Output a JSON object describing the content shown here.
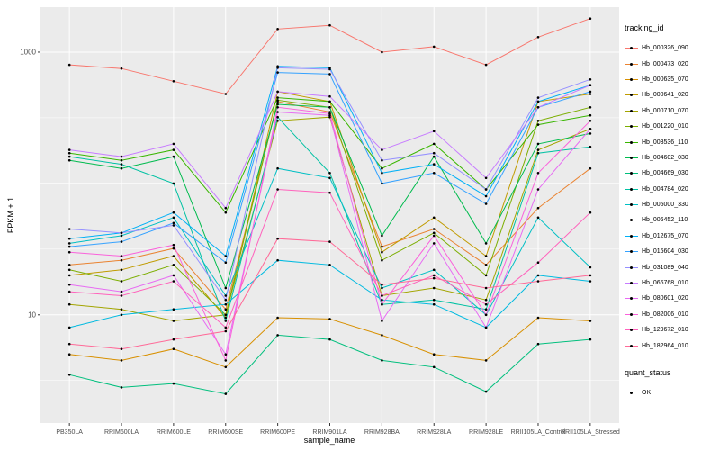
{
  "figure": {
    "panel_bg": "#EBEBEB",
    "grid_color": "#FFFFFF",
    "tick_label_color": "#4D4D4D",
    "tick_mark_color": "#333333",
    "point_color": "#000000"
  },
  "axes": {
    "x_title": "sample_name",
    "y_title": "FPKM + 1",
    "y_tick_labels": [
      {
        "label": "1000",
        "value": 1000
      },
      {
        "label": "10",
        "value": 10
      }
    ],
    "y_major_gridlines": [
      10,
      100,
      1000
    ],
    "y_minor_gridlines": [
      3.162,
      31.62,
      316.2
    ]
  },
  "legend": {
    "tracking_title": "tracking_id",
    "quant_title": "quant_status",
    "quant_items": [
      {
        "label": "OK"
      }
    ]
  },
  "chart_data": {
    "type": "line",
    "title": "",
    "xlabel": "sample_name",
    "ylabel": "FPKM + 1",
    "y_scale": "log10",
    "ylim": [
      1.5,
      2200
    ],
    "grid": true,
    "legend_position": "right",
    "x_categories": [
      "PB350LA",
      "RRIM600LA",
      "RRIM600LE",
      "RRIM600SE",
      "RRIM600PE",
      "RRIM901LA",
      "RRIM928BA",
      "RRIM928LA",
      "RRIM928LE",
      "RRII105LA_Control",
      "RRII105LA_Stressed"
    ],
    "series": [
      {
        "name": "Hb_000326_090",
        "color": "#F8766D",
        "values": [
          800,
          750,
          600,
          480,
          1500,
          1600,
          1000,
          1100,
          800,
          1300,
          1800
        ]
      },
      {
        "name": "Hb_000473_020",
        "color": "#EA8331",
        "values": [
          24,
          26,
          32,
          11,
          420,
          350,
          33,
          45,
          24,
          65,
          130
        ]
      },
      {
        "name": "Hb_000635_070",
        "color": "#D89000",
        "values": [
          5,
          4.5,
          5.5,
          4,
          9.5,
          9.3,
          7,
          5,
          4.5,
          9.5,
          9
        ]
      },
      {
        "name": "Hb_000641_020",
        "color": "#C09B00",
        "values": [
          20,
          22,
          28,
          9.5,
          500,
          420,
          30,
          55,
          28,
          420,
          480
        ]
      },
      {
        "name": "Hb_000710_070",
        "color": "#A3A500",
        "values": [
          12,
          11,
          9,
          10,
          300,
          320,
          14,
          16,
          13,
          180,
          260
        ]
      },
      {
        "name": "Hb_001220_010",
        "color": "#7CAE00",
        "values": [
          22,
          18,
          24,
          10,
          430,
          380,
          26,
          42,
          20,
          300,
          380
        ]
      },
      {
        "name": "Hb_003536_110",
        "color": "#39B600",
        "values": [
          170,
          150,
          180,
          60,
          450,
          420,
          130,
          200,
          90,
          280,
          330
        ]
      },
      {
        "name": "Hb_004602_030",
        "color": "#00BB4E",
        "values": [
          150,
          130,
          160,
          16,
          400,
          380,
          40,
          160,
          35,
          200,
          240
        ]
      },
      {
        "name": "Hb_004669_030",
        "color": "#00BF7D",
        "values": [
          3.5,
          2.8,
          3,
          2.5,
          7,
          6.5,
          4.5,
          4,
          2.6,
          6,
          6.5
        ]
      },
      {
        "name": "Hb_004784_020",
        "color": "#00C1A3",
        "values": [
          160,
          140,
          100,
          9,
          320,
          120,
          12,
          13,
          11,
          170,
          190
        ]
      },
      {
        "name": "Hb_005000_330",
        "color": "#00BFC4",
        "values": [
          35,
          40,
          55,
          14,
          130,
          110,
          16,
          22,
          10,
          55,
          23
        ]
      },
      {
        "name": "Hb_006452_110",
        "color": "#00BAE0",
        "values": [
          8,
          10,
          11,
          12,
          26,
          24,
          13,
          12,
          8,
          20,
          18
        ]
      },
      {
        "name": "Hb_012675_070",
        "color": "#00B0F6",
        "values": [
          38,
          42,
          60,
          28,
          780,
          760,
          120,
          140,
          80,
          420,
          560
        ]
      },
      {
        "name": "Hb_016604_030",
        "color": "#35A2FF",
        "values": [
          33,
          36,
          50,
          25,
          700,
          680,
          100,
          120,
          70,
          380,
          500
        ]
      },
      {
        "name": "Hb_031089_040",
        "color": "#9590FF",
        "values": [
          45,
          42,
          48,
          13,
          760,
          740,
          150,
          170,
          90,
          450,
          620
        ]
      },
      {
        "name": "Hb_066768_010",
        "color": "#C77CFF",
        "values": [
          180,
          160,
          200,
          65,
          500,
          460,
          180,
          250,
          110,
          380,
          560
        ]
      },
      {
        "name": "Hb_080601_020",
        "color": "#E76BF3",
        "values": [
          17,
          15,
          20,
          5,
          350,
          330,
          9,
          35,
          8,
          90,
          260
        ]
      },
      {
        "name": "Hb_082006_010",
        "color": "#FA62DB",
        "values": [
          30,
          28,
          34,
          4.5,
          380,
          340,
          12,
          40,
          10,
          120,
          300
        ]
      },
      {
        "name": "Hb_129672_010",
        "color": "#FF62BC",
        "values": [
          15,
          14,
          18,
          8,
          90,
          85,
          14,
          20,
          12,
          25,
          60
        ]
      },
      {
        "name": "Hb_182964_010",
        "color": "#FF6A98",
        "values": [
          6,
          5.5,
          6.5,
          7.5,
          38,
          36,
          17,
          19,
          16,
          18,
          20
        ]
      }
    ]
  }
}
